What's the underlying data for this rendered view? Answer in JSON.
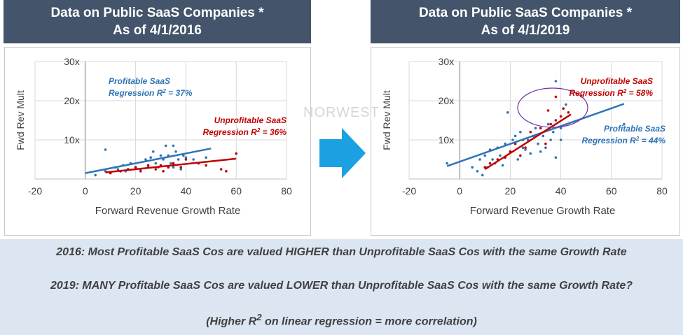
{
  "headers": {
    "left": {
      "line1": "Data on Public SaaS Companies *",
      "line2": "As of 4/1/2016"
    },
    "right": {
      "line1": "Data on Public SaaS Companies *",
      "line2": "As of 4/1/2019"
    }
  },
  "watermark": "NORWEST",
  "notes": {
    "line1": "2016: Most Profitable SaaS Cos are valued HIGHER than Unprofitable SaaS Cos with the same Growth Rate",
    "line2": "2019: MANY Profitable SaaS Cos are valued LOWER than Unprofitable SaaS Cos with the same Growth Rate?",
    "line3_pre": "(Higher R",
    "line3_sup": "2",
    "line3_post": " on linear regression = more correlation)"
  },
  "colors": {
    "header": "#44546A",
    "profitable": "#2E75B6",
    "unprofitable": "#C00000",
    "band": "#DCE6F2",
    "arrow": "#1BA1E2"
  },
  "chart_data": [
    {
      "type": "scatter",
      "title": "",
      "xlabel": "Forward Revenue  Growth Rate",
      "ylabel": "Fwd Rev Mult",
      "xlim": [
        -20,
        80
      ],
      "ylim": [
        0,
        30
      ],
      "xticks": [
        -20,
        0,
        20,
        40,
        60,
        80
      ],
      "yticks": [
        {
          "v": 10,
          "label": "10x"
        },
        {
          "v": 20,
          "label": "20x"
        },
        {
          "v": 30,
          "label": "30x"
        }
      ],
      "grid": true,
      "series": [
        {
          "name": "Profitable SaaS",
          "color": "#2E75B6",
          "points": [
            [
              4,
              1
            ],
            [
              8,
              2
            ],
            [
              8,
              7.5
            ],
            [
              12,
              3
            ],
            [
              13,
              2.5
            ],
            [
              15,
              3.5
            ],
            [
              16,
              2
            ],
            [
              18,
              4
            ],
            [
              20,
              3
            ],
            [
              22,
              2.5
            ],
            [
              24,
              5
            ],
            [
              25,
              3
            ],
            [
              26,
              5.5
            ],
            [
              27,
              7
            ],
            [
              28,
              4
            ],
            [
              29,
              3
            ],
            [
              30,
              6
            ],
            [
              31,
              5
            ],
            [
              32,
              8.5
            ],
            [
              33,
              6
            ],
            [
              34,
              4
            ],
            [
              35,
              3
            ],
            [
              35,
              8.5
            ],
            [
              36,
              7
            ],
            [
              37,
              5
            ],
            [
              38,
              2.5
            ],
            [
              39,
              6
            ],
            [
              40,
              5.5
            ],
            [
              43,
              5
            ],
            [
              48,
              5.5
            ]
          ],
          "regression": {
            "x0": 0,
            "y0": 1.5,
            "x1": 50,
            "y1": 7.8,
            "label_line1": "Profitable SaaS",
            "label_line2": "Regression R",
            "r2": "37%"
          }
        },
        {
          "name": "Unprofitable SaaS",
          "color": "#C00000",
          "points": [
            [
              10,
              1.5
            ],
            [
              14,
              2
            ],
            [
              17,
              2.5
            ],
            [
              20,
              3
            ],
            [
              22,
              2
            ],
            [
              25,
              3.5
            ],
            [
              28,
              2.5
            ],
            [
              30,
              3.5
            ],
            [
              31,
              2
            ],
            [
              33,
              3
            ],
            [
              35,
              4
            ],
            [
              38,
              3
            ],
            [
              40,
              5
            ],
            [
              45,
              4
            ],
            [
              48,
              3.5
            ],
            [
              54,
              2.5
            ],
            [
              56,
              2
            ],
            [
              60,
              6.5
            ]
          ],
          "regression": {
            "x0": 8,
            "y0": 1.7,
            "x1": 60,
            "y1": 5.2,
            "label_line1": "Unprofitable SaaS",
            "label_line2": "Regression R",
            "r2": "36%"
          }
        }
      ]
    },
    {
      "type": "scatter",
      "title": "",
      "xlabel": "Forward Revenue  Growth Rate",
      "ylabel": "Fwd Rev Mult",
      "xlim": [
        -20,
        80
      ],
      "ylim": [
        0,
        30
      ],
      "xticks": [
        -20,
        0,
        20,
        40,
        60,
        80
      ],
      "yticks": [
        {
          "v": 10,
          "label": "10x"
        },
        {
          "v": 20,
          "label": "20x"
        },
        {
          "v": 30,
          "label": "30x"
        }
      ],
      "grid": true,
      "series": [
        {
          "name": "Profitable SaaS",
          "color": "#2E75B6",
          "points": [
            [
              -5,
              4
            ],
            [
              5,
              3
            ],
            [
              7,
              2
            ],
            [
              8,
              5
            ],
            [
              9,
              1
            ],
            [
              10,
              6
            ],
            [
              11,
              3
            ],
            [
              12,
              7.5
            ],
            [
              13,
              5
            ],
            [
              14,
              4
            ],
            [
              15,
              8
            ],
            [
              16,
              6
            ],
            [
              17,
              3.5
            ],
            [
              18,
              9
            ],
            [
              19,
              17
            ],
            [
              20,
              7
            ],
            [
              21,
              10
            ],
            [
              22,
              11
            ],
            [
              23,
              5
            ],
            [
              24,
              12
            ],
            [
              25,
              8
            ],
            [
              26,
              7.5
            ],
            [
              27,
              10
            ],
            [
              28,
              6.5
            ],
            [
              29,
              11
            ],
            [
              30,
              13
            ],
            [
              31,
              9
            ],
            [
              32,
              7
            ],
            [
              33,
              11
            ],
            [
              34,
              8
            ],
            [
              35,
              14
            ],
            [
              36,
              10
            ],
            [
              37,
              12
            ],
            [
              38,
              5.5
            ],
            [
              38,
              25
            ],
            [
              40,
              10
            ],
            [
              40,
              13
            ],
            [
              42,
              19
            ],
            [
              65,
              14
            ]
          ],
          "regression": {
            "x0": -5,
            "y0": 3.3,
            "x1": 65,
            "y1": 19.2,
            "label_line1": "Profitable SaaS",
            "label_line2": "Regression R",
            "r2": "44%"
          }
        },
        {
          "name": "Unprofitable SaaS",
          "color": "#C00000",
          "points": [
            [
              10,
              3
            ],
            [
              12,
              4
            ],
            [
              15,
              5
            ],
            [
              18,
              5.5
            ],
            [
              20,
              7
            ],
            [
              22,
              9
            ],
            [
              24,
              6
            ],
            [
              25,
              10
            ],
            [
              26,
              8
            ],
            [
              28,
              12
            ],
            [
              30,
              11
            ],
            [
              32,
              13
            ],
            [
              34,
              9
            ],
            [
              35,
              17.5
            ],
            [
              36,
              14
            ],
            [
              38,
              21
            ],
            [
              38,
              15
            ],
            [
              40,
              16
            ],
            [
              41,
              18
            ],
            [
              43,
              17
            ]
          ],
          "regression": {
            "x0": 10,
            "y0": 2.5,
            "x1": 44,
            "y1": 16.5,
            "label_line1": "Unprofitable SaaS",
            "label_line2": "Regression R",
            "r2": "58%"
          }
        }
      ]
    }
  ]
}
